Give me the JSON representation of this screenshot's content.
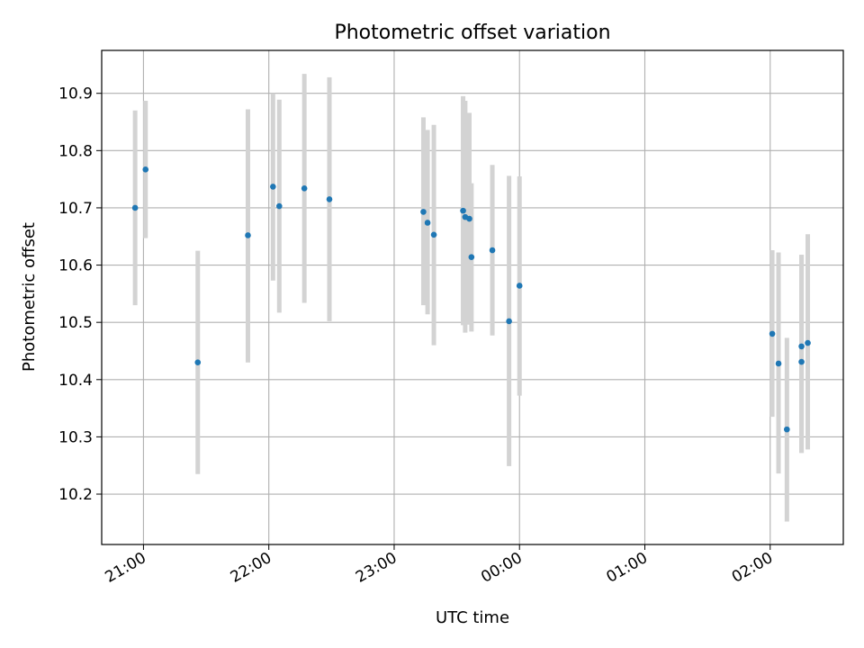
{
  "chart_data": {
    "type": "scatter",
    "title": "Photometric offset variation",
    "xlabel": "UTC time",
    "ylabel": "Photometric offset",
    "x_axis": {
      "kind": "time",
      "min": "20:40",
      "max": "02:35",
      "day_boundary_after": "23:59"
    },
    "xticks": [
      "21:00",
      "22:00",
      "23:00",
      "00:00",
      "01:00",
      "02:00"
    ],
    "ylim": [
      10.112,
      10.975
    ],
    "yticks": [
      "10.2",
      "10.3",
      "10.4",
      "10.5",
      "10.6",
      "10.7",
      "10.8",
      "10.9"
    ],
    "grid": true,
    "point_color": "#1f77b4",
    "errorbar_color": "#d3d3d3",
    "points": [
      {
        "x": "20:56",
        "y": 10.7,
        "ylow": 10.53,
        "yhigh": 10.87
      },
      {
        "x": "21:01",
        "y": 10.767,
        "ylow": 10.647,
        "yhigh": 10.887
      },
      {
        "x": "21:26",
        "y": 10.43,
        "ylow": 10.235,
        "yhigh": 10.625
      },
      {
        "x": "21:50",
        "y": 10.652,
        "ylow": 10.43,
        "yhigh": 10.872
      },
      {
        "x": "22:02",
        "y": 10.737,
        "ylow": 10.573,
        "yhigh": 10.9
      },
      {
        "x": "22:05",
        "y": 10.703,
        "ylow": 10.517,
        "yhigh": 10.889
      },
      {
        "x": "22:17",
        "y": 10.734,
        "ylow": 10.534,
        "yhigh": 10.934
      },
      {
        "x": "22:29",
        "y": 10.715,
        "ylow": 10.502,
        "yhigh": 10.928
      },
      {
        "x": "23:14",
        "y": 10.693,
        "ylow": 10.53,
        "yhigh": 10.858
      },
      {
        "x": "23:16",
        "y": 10.674,
        "ylow": 10.514,
        "yhigh": 10.836
      },
      {
        "x": "23:19",
        "y": 10.653,
        "ylow": 10.46,
        "yhigh": 10.845
      },
      {
        "x": "23:33",
        "y": 10.695,
        "ylow": 10.495,
        "yhigh": 10.895
      },
      {
        "x": "23:34",
        "y": 10.684,
        "ylow": 10.482,
        "yhigh": 10.887
      },
      {
        "x": "23:36",
        "y": 10.681,
        "ylow": 10.496,
        "yhigh": 10.866
      },
      {
        "x": "23:37",
        "y": 10.614,
        "ylow": 10.484,
        "yhigh": 10.743
      },
      {
        "x": "23:47",
        "y": 10.626,
        "ylow": 10.477,
        "yhigh": 10.775
      },
      {
        "x": "23:55",
        "y": 10.502,
        "ylow": 10.249,
        "yhigh": 10.756
      },
      {
        "x": "00:00",
        "y": 10.564,
        "ylow": 10.372,
        "yhigh": 10.755
      },
      {
        "x": "02:01",
        "y": 10.48,
        "ylow": 10.335,
        "yhigh": 10.626
      },
      {
        "x": "02:04",
        "y": 10.428,
        "ylow": 10.236,
        "yhigh": 10.622
      },
      {
        "x": "02:08",
        "y": 10.313,
        "ylow": 10.152,
        "yhigh": 10.473
      },
      {
        "x": "02:15",
        "y": 10.458,
        "ylow": 10.272,
        "yhigh": 10.618
      },
      {
        "x": "02:15",
        "y": 10.431,
        "ylow": 10.272,
        "yhigh": 10.618
      },
      {
        "x": "02:18",
        "y": 10.464,
        "ylow": 10.278,
        "yhigh": 10.654
      }
    ]
  }
}
